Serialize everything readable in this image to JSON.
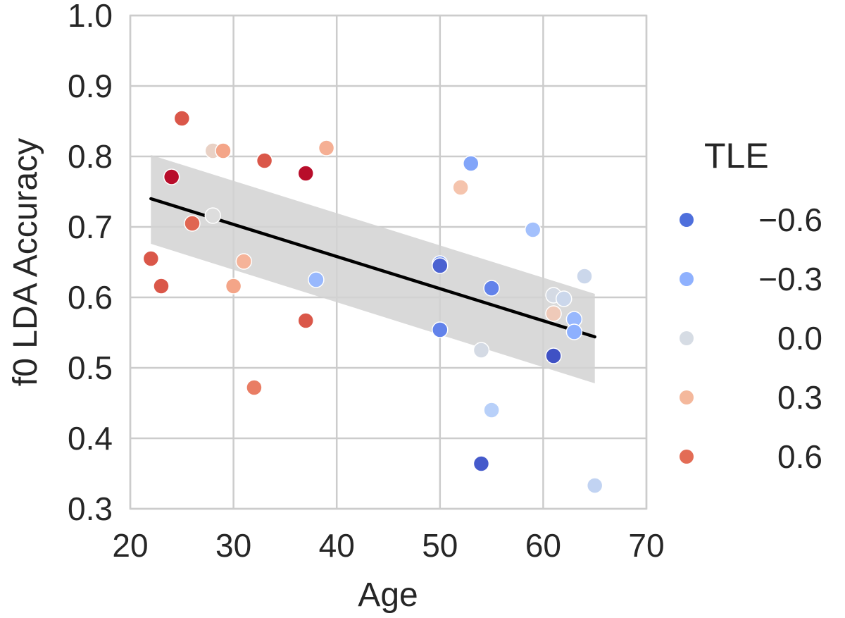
{
  "chart_data": {
    "type": "scatter",
    "title": "",
    "xlabel": "Age",
    "ylabel": "f0 LDA Accuracy",
    "xlim": [
      20,
      70
    ],
    "ylim": [
      0.3,
      1.0
    ],
    "x_ticks": [
      "20",
      "30",
      "40",
      "50",
      "60",
      "70"
    ],
    "y_ticks": [
      "0.3",
      "0.4",
      "0.5",
      "0.6",
      "0.7",
      "0.8",
      "0.9",
      "1.0"
    ],
    "grid": true,
    "colormap": "coolwarm",
    "hue_range": [
      -0.8,
      0.8
    ],
    "points": [
      {
        "x": 22,
        "y": 0.655,
        "tle": 0.62
      },
      {
        "x": 23,
        "y": 0.616,
        "tle": 0.62
      },
      {
        "x": 24,
        "y": 0.771,
        "tle": 0.78
      },
      {
        "x": 25,
        "y": 0.854,
        "tle": 0.62
      },
      {
        "x": 26,
        "y": 0.705,
        "tle": 0.58
      },
      {
        "x": 28,
        "y": 0.808,
        "tle": 0.1
      },
      {
        "x": 28,
        "y": 0.716,
        "tle": 0.0
      },
      {
        "x": 29,
        "y": 0.808,
        "tle": 0.35
      },
      {
        "x": 30,
        "y": 0.616,
        "tle": 0.35
      },
      {
        "x": 31,
        "y": 0.651,
        "tle": 0.28
      },
      {
        "x": 32,
        "y": 0.472,
        "tle": 0.5
      },
      {
        "x": 33,
        "y": 0.794,
        "tle": 0.62
      },
      {
        "x": 37,
        "y": 0.776,
        "tle": 0.78
      },
      {
        "x": 37,
        "y": 0.567,
        "tle": 0.62
      },
      {
        "x": 38,
        "y": 0.625,
        "tle": -0.35
      },
      {
        "x": 39,
        "y": 0.812,
        "tle": 0.3
      },
      {
        "x": 50,
        "y": 0.648,
        "tle": -0.5
      },
      {
        "x": 50,
        "y": 0.645,
        "tle": -0.72
      },
      {
        "x": 50,
        "y": 0.554,
        "tle": -0.6
      },
      {
        "x": 52,
        "y": 0.756,
        "tle": 0.2
      },
      {
        "x": 53,
        "y": 0.79,
        "tle": -0.45
      },
      {
        "x": 54,
        "y": 0.525,
        "tle": -0.05
      },
      {
        "x": 54,
        "y": 0.364,
        "tle": -0.75
      },
      {
        "x": 55,
        "y": 0.613,
        "tle": -0.6
      },
      {
        "x": 55,
        "y": 0.44,
        "tle": -0.2
      },
      {
        "x": 59,
        "y": 0.696,
        "tle": -0.3
      },
      {
        "x": 61,
        "y": 0.603,
        "tle": -0.05
      },
      {
        "x": 61,
        "y": 0.577,
        "tle": 0.15
      },
      {
        "x": 61,
        "y": 0.517,
        "tle": -0.78
      },
      {
        "x": 62,
        "y": 0.598,
        "tle": -0.1
      },
      {
        "x": 63,
        "y": 0.569,
        "tle": -0.35
      },
      {
        "x": 63,
        "y": 0.551,
        "tle": -0.4
      },
      {
        "x": 64,
        "y": 0.63,
        "tle": -0.1
      },
      {
        "x": 65,
        "y": 0.333,
        "tle": -0.15
      }
    ],
    "regression": {
      "x": [
        22,
        65
      ],
      "y": [
        0.74,
        0.544
      ],
      "ci_upper": [
        0.802,
        0.605
      ],
      "ci_lower": [
        0.676,
        0.478
      ],
      "line_color": "#000000",
      "ci_color": "#d2d2d2"
    },
    "legend": {
      "title": "TLE",
      "position": "right",
      "entries": [
        {
          "label": "−0.6",
          "color": "#4e6fdc"
        },
        {
          "label": "−0.3",
          "color": "#8fb1fe"
        },
        {
          "label": "0.0",
          "color": "#d6dce4"
        },
        {
          "label": "0.3",
          "color": "#f4b89c"
        },
        {
          "label": "0.6",
          "color": "#e36c55"
        }
      ]
    }
  }
}
